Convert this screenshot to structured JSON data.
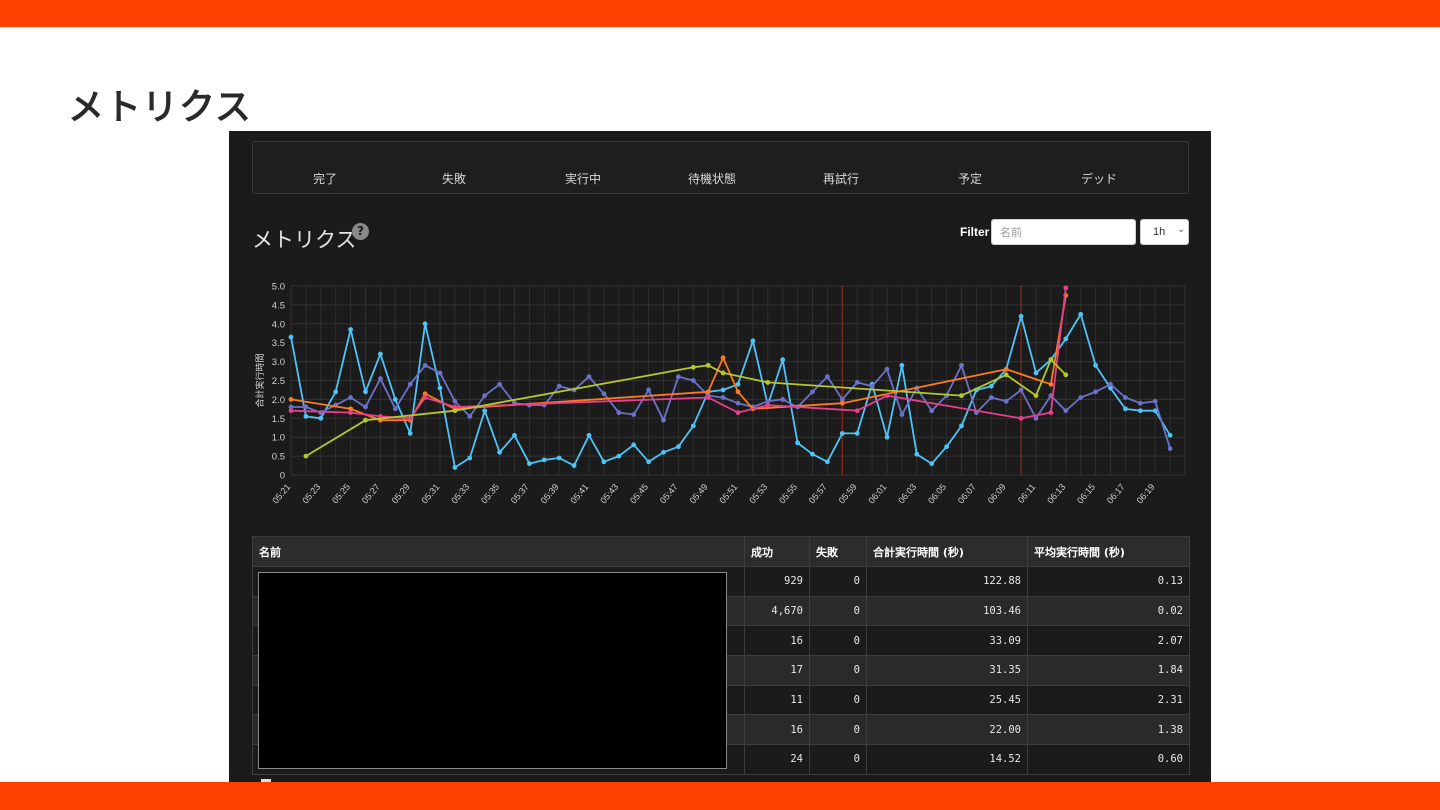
{
  "slide": {
    "title": "メトリクス",
    "accent_color": "#ff4000"
  },
  "stats": [
    "完了",
    "失敗",
    "実行中",
    "待機状態",
    "再試行",
    "予定",
    "デッド"
  ],
  "metrics": {
    "heading": "メトリクス",
    "help_icon": "question-circle-icon",
    "filter_label": "Filter",
    "filter_placeholder": "名前",
    "range": "1h"
  },
  "chart_data": {
    "type": "line",
    "ylabel": "合計実行時間",
    "ylim": [
      0,
      5
    ],
    "yticks": [
      "5.0",
      "4.5",
      "4.0",
      "3.5",
      "3.0",
      "2.5",
      "2.0",
      "1.5",
      "1.0",
      "0.5",
      "0"
    ],
    "xticks": [
      "05:21",
      "05:23",
      "05:25",
      "05:27",
      "05:29",
      "05:31",
      "05:33",
      "05:35",
      "05:37",
      "05:39",
      "05:41",
      "05:43",
      "05:45",
      "05:47",
      "05:49",
      "05:51",
      "05:53",
      "05:55",
      "05:57",
      "05:59",
      "06:01",
      "06:03",
      "06:05",
      "06:07",
      "06:09",
      "06:11",
      "06:13",
      "06:15",
      "06:17",
      "06:19"
    ],
    "x_start": "05:21",
    "x_end": "06:21",
    "markers": [
      "05:58",
      "06:10"
    ],
    "marker_color": "#8b2a1a",
    "grid": true,
    "series": [
      {
        "color": "#4fc3f7",
        "points": [
          [
            "05:21",
            3.65
          ],
          [
            "05:22",
            1.55
          ],
          [
            "05:23",
            1.5
          ],
          [
            "05:24",
            2.2
          ],
          [
            "05:25",
            3.85
          ],
          [
            "05:26",
            2.2
          ],
          [
            "05:27",
            3.2
          ],
          [
            "05:28",
            2.0
          ],
          [
            "05:29",
            1.1
          ],
          [
            "05:30",
            4.0
          ],
          [
            "05:31",
            2.3
          ],
          [
            "05:32",
            0.2
          ],
          [
            "05:33",
            0.45
          ],
          [
            "05:34",
            1.7
          ],
          [
            "05:35",
            0.6
          ],
          [
            "05:36",
            1.05
          ],
          [
            "05:37",
            0.3
          ],
          [
            "05:38",
            0.4
          ],
          [
            "05:39",
            0.45
          ],
          [
            "05:40",
            0.25
          ],
          [
            "05:41",
            1.05
          ],
          [
            "05:42",
            0.35
          ],
          [
            "05:43",
            0.5
          ],
          [
            "05:44",
            0.8
          ],
          [
            "05:45",
            0.35
          ],
          [
            "05:46",
            0.6
          ],
          [
            "05:47",
            0.75
          ],
          [
            "05:48",
            1.3
          ],
          [
            "05:49",
            2.2
          ],
          [
            "05:50",
            2.25
          ],
          [
            "05:51",
            2.4
          ],
          [
            "05:52",
            3.55
          ],
          [
            "05:53",
            1.85
          ],
          [
            "05:54",
            3.05
          ],
          [
            "05:55",
            0.85
          ],
          [
            "05:56",
            0.55
          ],
          [
            "05:57",
            0.35
          ],
          [
            "05:58",
            1.1
          ],
          [
            "05:59",
            1.1
          ],
          [
            "06:00",
            2.4
          ],
          [
            "06:01",
            1.0
          ],
          [
            "06:02",
            2.9
          ],
          [
            "06:03",
            0.55
          ],
          [
            "06:04",
            0.3
          ],
          [
            "06:05",
            0.75
          ],
          [
            "06:06",
            1.3
          ],
          [
            "06:07",
            2.25
          ],
          [
            "06:08",
            2.35
          ],
          [
            "06:09",
            2.8
          ],
          [
            "06:10",
            4.2
          ],
          [
            "06:11",
            2.7
          ],
          [
            "06:12",
            3.05
          ],
          [
            "06:13",
            3.6
          ],
          [
            "06:14",
            4.25
          ],
          [
            "06:15",
            2.9
          ],
          [
            "06:16",
            2.3
          ],
          [
            "06:17",
            1.75
          ],
          [
            "06:18",
            1.7
          ],
          [
            "06:19",
            1.7
          ],
          [
            "06:20",
            1.05
          ]
        ]
      },
      {
        "color": "#6b72c9",
        "points": [
          [
            "05:21",
            1.8
          ],
          [
            "05:22",
            1.8
          ],
          [
            "05:23",
            1.65
          ],
          [
            "05:24",
            1.85
          ],
          [
            "05:25",
            2.05
          ],
          [
            "05:26",
            1.8
          ],
          [
            "05:27",
            2.55
          ],
          [
            "05:28",
            1.75
          ],
          [
            "05:29",
            2.4
          ],
          [
            "05:30",
            2.9
          ],
          [
            "05:31",
            2.7
          ],
          [
            "05:32",
            1.95
          ],
          [
            "05:33",
            1.55
          ],
          [
            "05:34",
            2.1
          ],
          [
            "05:35",
            2.4
          ],
          [
            "05:36",
            1.9
          ],
          [
            "05:37",
            1.85
          ],
          [
            "05:38",
            1.85
          ],
          [
            "05:39",
            2.35
          ],
          [
            "05:40",
            2.25
          ],
          [
            "05:41",
            2.6
          ],
          [
            "05:42",
            2.15
          ],
          [
            "05:43",
            1.65
          ],
          [
            "05:44",
            1.6
          ],
          [
            "05:45",
            2.25
          ],
          [
            "05:46",
            1.45
          ],
          [
            "05:47",
            2.6
          ],
          [
            "05:48",
            2.5
          ],
          [
            "05:49",
            2.1
          ],
          [
            "05:50",
            2.05
          ],
          [
            "05:51",
            1.9
          ],
          [
            "05:52",
            1.8
          ],
          [
            "05:53",
            1.95
          ],
          [
            "05:54",
            2.0
          ],
          [
            "05:55",
            1.8
          ],
          [
            "05:56",
            2.2
          ],
          [
            "05:57",
            2.6
          ],
          [
            "05:58",
            2.0
          ],
          [
            "05:59",
            2.45
          ],
          [
            "06:00",
            2.35
          ],
          [
            "06:01",
            2.8
          ],
          [
            "06:02",
            1.6
          ],
          [
            "06:03",
            2.3
          ],
          [
            "06:04",
            1.7
          ],
          [
            "06:05",
            2.1
          ],
          [
            "06:06",
            2.9
          ],
          [
            "06:07",
            1.65
          ],
          [
            "06:08",
            2.05
          ],
          [
            "06:09",
            1.95
          ],
          [
            "06:10",
            2.25
          ],
          [
            "06:11",
            1.5
          ],
          [
            "06:12",
            2.1
          ],
          [
            "06:13",
            1.7
          ],
          [
            "06:14",
            2.05
          ],
          [
            "06:15",
            2.2
          ],
          [
            "06:16",
            2.4
          ],
          [
            "06:17",
            2.05
          ],
          [
            "06:18",
            1.9
          ],
          [
            "06:19",
            1.95
          ],
          [
            "06:20",
            0.7
          ]
        ]
      },
      {
        "color": "#ff7a1f",
        "points": [
          [
            "05:21",
            2.0
          ],
          [
            "05:25",
            1.75
          ],
          [
            "05:27",
            1.45
          ],
          [
            "05:29",
            1.45
          ],
          [
            "05:30",
            2.15
          ],
          [
            "05:32",
            1.75
          ],
          [
            "05:49",
            2.2
          ],
          [
            "05:50",
            3.1
          ],
          [
            "05:51",
            2.2
          ],
          [
            "05:52",
            1.75
          ],
          [
            "05:58",
            1.9
          ],
          [
            "06:09",
            2.8
          ],
          [
            "06:12",
            2.4
          ],
          [
            "06:13",
            4.75
          ]
        ]
      },
      {
        "color": "#e83e8c",
        "points": [
          [
            "05:21",
            1.7
          ],
          [
            "05:25",
            1.65
          ],
          [
            "05:27",
            1.55
          ],
          [
            "05:29",
            1.5
          ],
          [
            "05:30",
            2.05
          ],
          [
            "05:32",
            1.8
          ],
          [
            "05:49",
            2.05
          ],
          [
            "05:51",
            1.65
          ],
          [
            "05:53",
            1.85
          ],
          [
            "05:59",
            1.7
          ],
          [
            "06:01",
            2.1
          ],
          [
            "06:10",
            1.5
          ],
          [
            "06:12",
            1.65
          ],
          [
            "06:13",
            4.95
          ]
        ]
      },
      {
        "color": "#b5c82a",
        "points": [
          [
            "05:22",
            0.5
          ],
          [
            "05:26",
            1.45
          ],
          [
            "05:32",
            1.7
          ],
          [
            "05:48",
            2.85
          ],
          [
            "05:49",
            2.9
          ],
          [
            "05:50",
            2.7
          ],
          [
            "05:53",
            2.45
          ],
          [
            "06:06",
            2.1
          ],
          [
            "06:09",
            2.65
          ],
          [
            "06:11",
            2.1
          ],
          [
            "06:12",
            3.05
          ],
          [
            "06:13",
            2.65
          ]
        ]
      }
    ]
  },
  "table": {
    "headers": [
      "名前",
      "成功",
      "失敗",
      "合計実行時間 (秒)",
      "平均実行時間 (秒)"
    ],
    "rows": [
      [
        "",
        "929",
        "0",
        "122.88",
        "0.13"
      ],
      [
        "",
        "4,670",
        "0",
        "103.46",
        "0.02"
      ],
      [
        "",
        "16",
        "0",
        "33.09",
        "2.07"
      ],
      [
        "",
        "17",
        "0",
        "31.35",
        "1.84"
      ],
      [
        "",
        "11",
        "0",
        "25.45",
        "2.31"
      ],
      [
        "",
        "16",
        "0",
        "22.00",
        "1.38"
      ],
      [
        "",
        "24",
        "0",
        "14.52",
        "0.60"
      ]
    ]
  }
}
